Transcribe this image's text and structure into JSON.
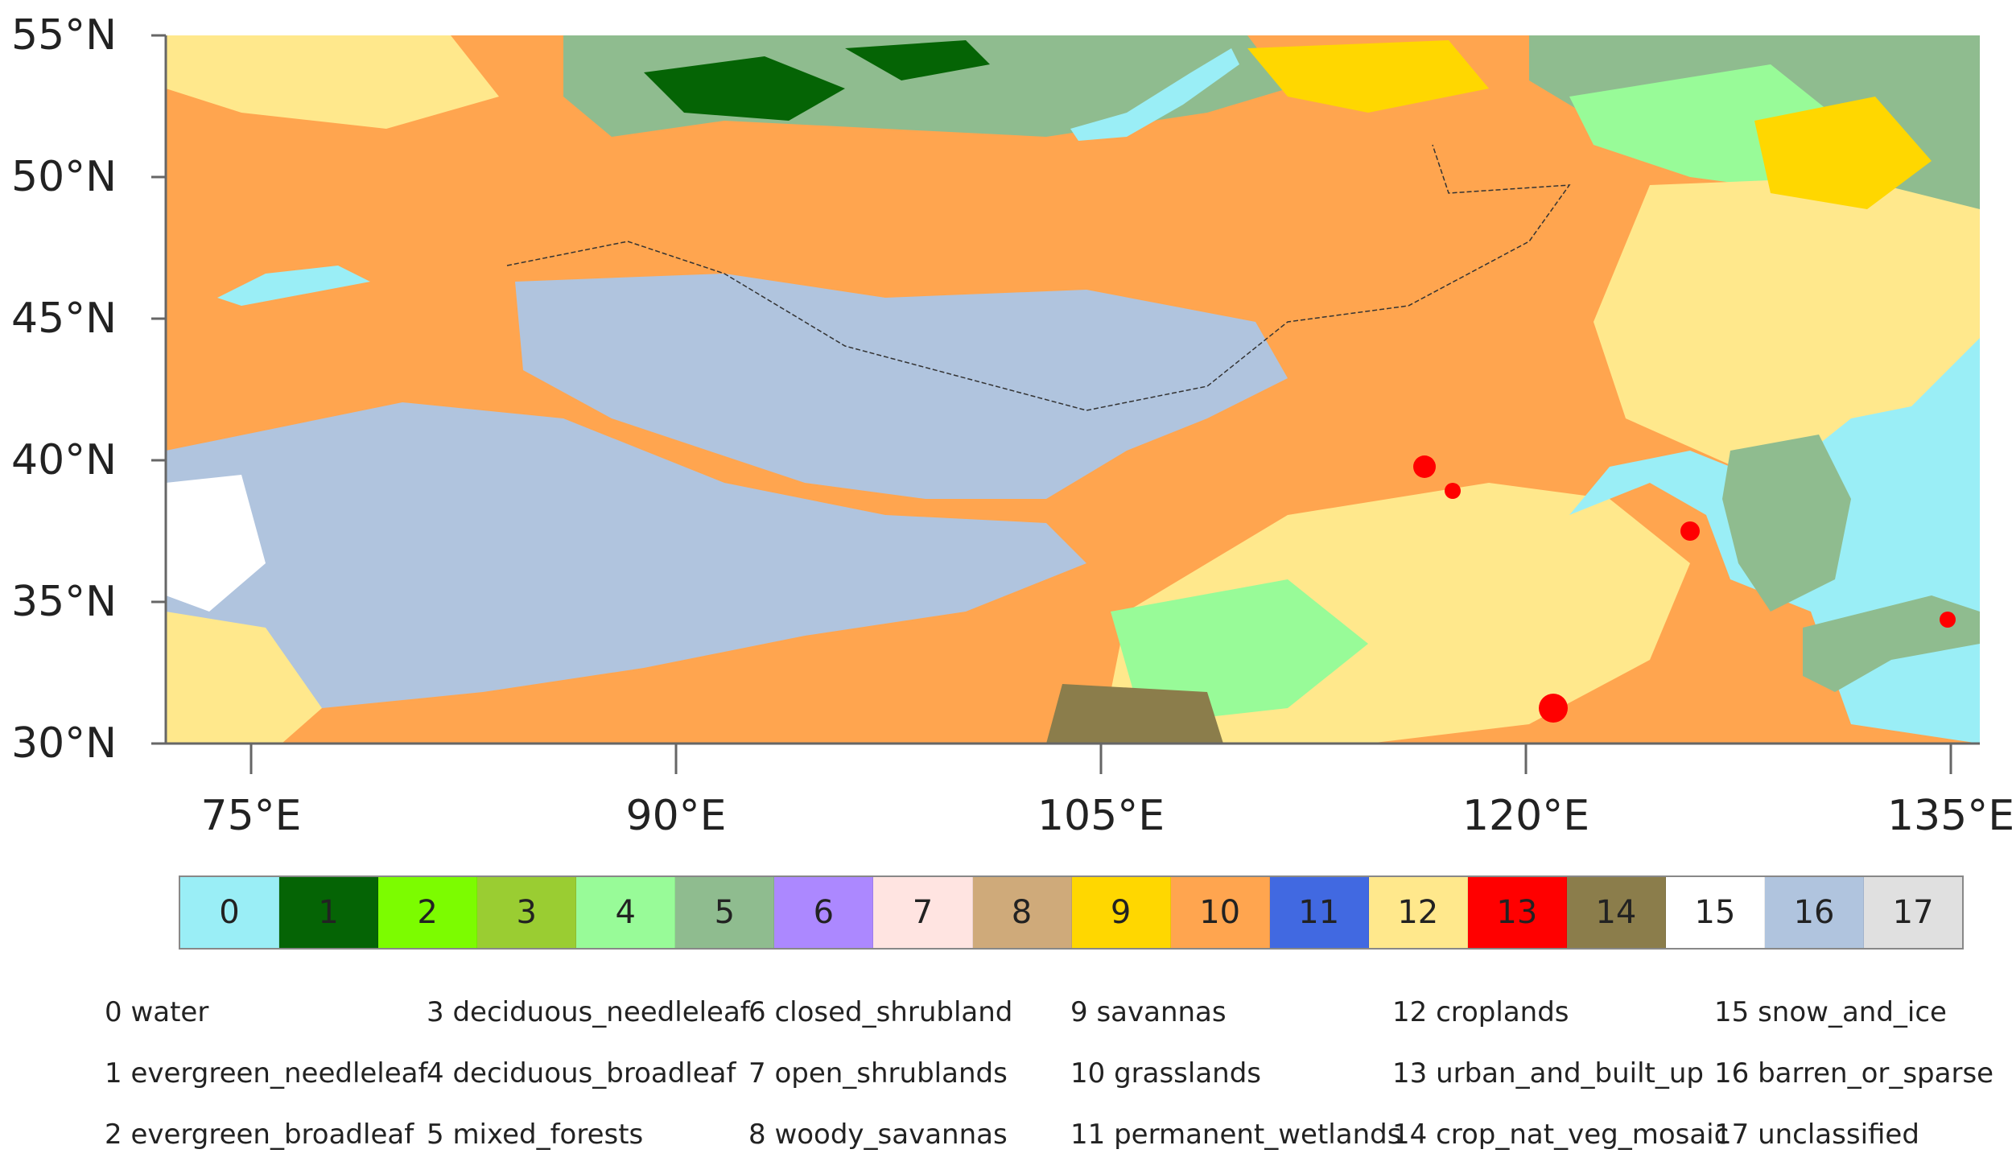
{
  "map": {
    "lat_ticks": [
      "55°N",
      "50°N",
      "45°N",
      "40°N",
      "35°N",
      "30°N"
    ],
    "lon_ticks": [
      "75°E",
      "90°E",
      "105°E",
      "120°E",
      "135°E"
    ]
  },
  "colorbar": {
    "classes": [
      {
        "value": "0",
        "color": "#9AEEF6"
      },
      {
        "value": "1",
        "color": "#056405"
      },
      {
        "value": "2",
        "color": "#7CFC00"
      },
      {
        "value": "3",
        "color": "#9ACD32"
      },
      {
        "value": "4",
        "color": "#98FB98"
      },
      {
        "value": "5",
        "color": "#8FBC8F"
      },
      {
        "value": "6",
        "color": "#AC88FF"
      },
      {
        "value": "7",
        "color": "#FFE4E1"
      },
      {
        "value": "8",
        "color": "#CFAA7A"
      },
      {
        "value": "9",
        "color": "#FFD700"
      },
      {
        "value": "10",
        "color": "#FFA54F"
      },
      {
        "value": "11",
        "color": "#4169E1"
      },
      {
        "value": "12",
        "color": "#FFE88C"
      },
      {
        "value": "13",
        "color": "#FF0000"
      },
      {
        "value": "14",
        "color": "#8B7D4B"
      },
      {
        "value": "15",
        "color": "#FFFFFF"
      },
      {
        "value": "16",
        "color": "#B0C4DE"
      },
      {
        "value": "17",
        "color": "#E0E0E0"
      }
    ]
  },
  "legend": {
    "columns": [
      [
        "0 water",
        "1 evergreen_needleleaf",
        "2 evergreen_broadleaf"
      ],
      [
        "3 deciduous_needleleaf",
        "4 deciduous_broadleaf",
        "5 mixed_forests"
      ],
      [
        "6 closed_shrubland",
        "7 open_shrublands",
        "8 woody_savannas"
      ],
      [
        "9 savannas",
        "10 grasslands",
        "11 permanent_wetlands"
      ],
      [
        "12 croplands",
        "13 urban_and_built_up",
        "14 crop_nat_veg_mosaic"
      ],
      [
        "15 snow_and_ice",
        "16 barren_or_sparse",
        "17 unclassified"
      ]
    ]
  }
}
